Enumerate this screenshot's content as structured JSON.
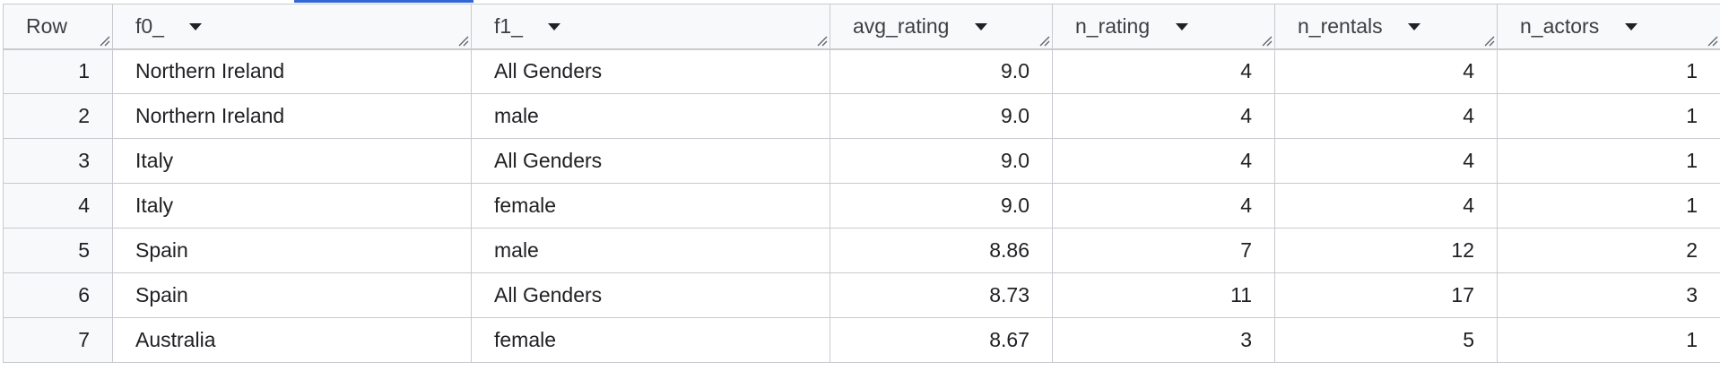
{
  "table": {
    "headers": {
      "row": "Row",
      "f0": "f0_",
      "f1": "f1_",
      "avg_rating": "avg_rating",
      "n_rating": "n_rating",
      "n_rentals": "n_rentals",
      "n_actors": "n_actors"
    },
    "rows": [
      {
        "row": "1",
        "f0": "Northern Ireland",
        "f1": "All Genders",
        "avg_rating": "9.0",
        "n_rating": "4",
        "n_rentals": "4",
        "n_actors": "1"
      },
      {
        "row": "2",
        "f0": "Northern Ireland",
        "f1": "male",
        "avg_rating": "9.0",
        "n_rating": "4",
        "n_rentals": "4",
        "n_actors": "1"
      },
      {
        "row": "3",
        "f0": "Italy",
        "f1": "All Genders",
        "avg_rating": "9.0",
        "n_rating": "4",
        "n_rentals": "4",
        "n_actors": "1"
      },
      {
        "row": "4",
        "f0": "Italy",
        "f1": "female",
        "avg_rating": "9.0",
        "n_rating": "4",
        "n_rentals": "4",
        "n_actors": "1"
      },
      {
        "row": "5",
        "f0": "Spain",
        "f1": "male",
        "avg_rating": "8.86",
        "n_rating": "7",
        "n_rentals": "12",
        "n_actors": "2"
      },
      {
        "row": "6",
        "f0": "Spain",
        "f1": "All Genders",
        "avg_rating": "8.73",
        "n_rating": "11",
        "n_rentals": "17",
        "n_actors": "3"
      },
      {
        "row": "7",
        "f0": "Australia",
        "f1": "female",
        "avg_rating": "8.67",
        "n_rating": "3",
        "n_rentals": "5",
        "n_actors": "1"
      }
    ]
  },
  "colors": {
    "accent": "#3367d6",
    "header_bg": "#f8f9fa",
    "border": "#c8cacf"
  },
  "icons": {
    "sort": "caret-down-icon",
    "resize": "column-resize-icon"
  }
}
